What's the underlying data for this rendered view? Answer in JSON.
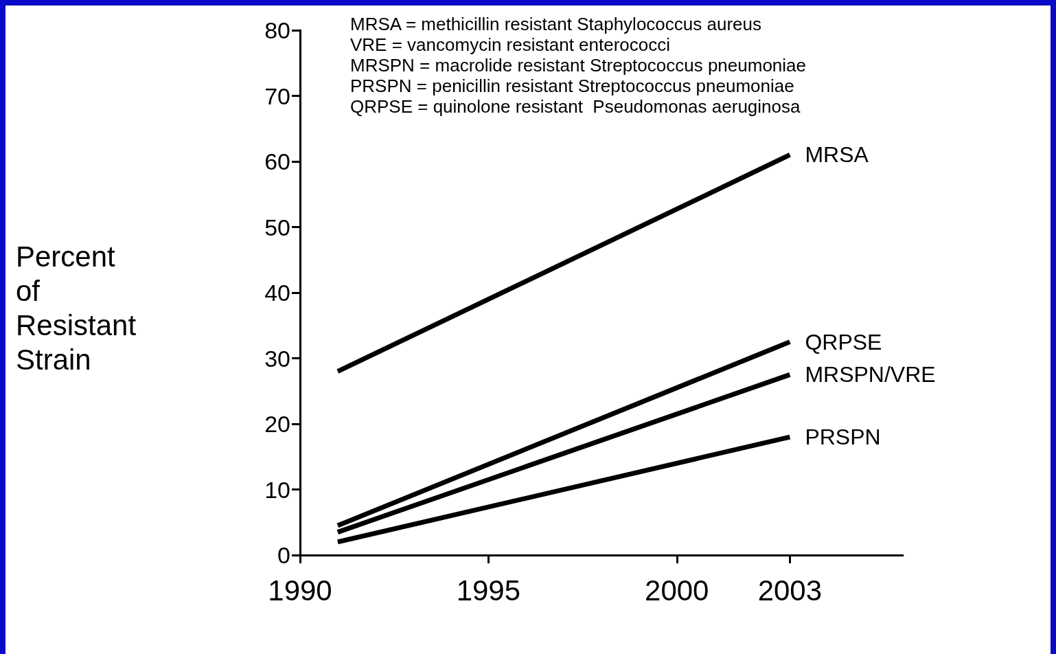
{
  "chart_data": {
    "type": "line",
    "ylabel": "Percent of Resistant Strain",
    "annotations": [
      "MRSA = methicillin resistant Staphylococcus aureus",
      "VRE = vancomycin resistant enterococci",
      "MRSPN = macrolide resistant Streptococcus pneumoniae",
      "PRSPN = penicillin resistant Streptococcus pneumoniae",
      "QRPSE = quinolone resistant  Pseudomonas aeruginosa"
    ],
    "x": [
      1991,
      2003
    ],
    "series": [
      {
        "name": "MRSA",
        "color": "#000000",
        "values": [
          28,
          61
        ]
      },
      {
        "name": "QRPSE",
        "color": "#000000",
        "values": [
          4.5,
          32.5
        ]
      },
      {
        "name": "MRSPN/VRE",
        "color": "#000000",
        "values": [
          3.5,
          27.5
        ]
      },
      {
        "name": "PRSPN",
        "color": "#000000",
        "values": [
          2,
          18
        ]
      }
    ],
    "xlim": [
      1990,
      2006
    ],
    "xticks": [
      1990,
      1995,
      2000,
      2003
    ],
    "ylim": [
      0,
      80
    ],
    "yticks": [
      0,
      10,
      20,
      30,
      40,
      50,
      60,
      70,
      80
    ],
    "line_style": "solid"
  }
}
